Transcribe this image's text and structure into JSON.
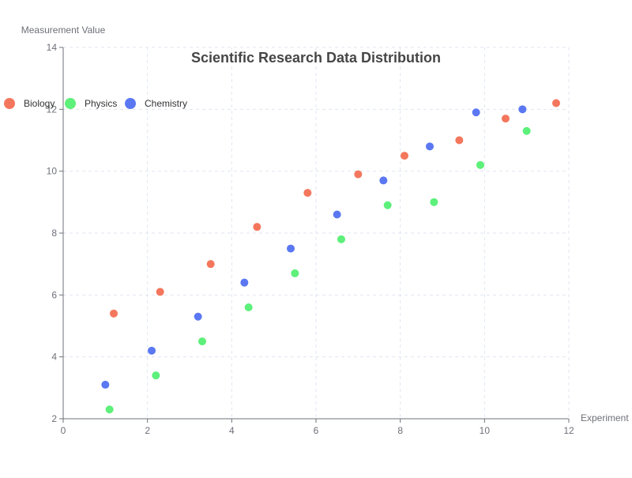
{
  "chart_data": {
    "type": "scatter",
    "title": "Scientific Research Data Distribution",
    "xlabel": "Experiment",
    "ylabel": "Measurement Value",
    "xlim": [
      0,
      12
    ],
    "ylim": [
      2,
      14
    ],
    "x_ticks": [
      0,
      2,
      4,
      6,
      8,
      10,
      12
    ],
    "y_ticks": [
      2,
      4,
      6,
      8,
      10,
      12,
      14
    ],
    "grid": true,
    "legend_position": "top-left",
    "series": [
      {
        "name": "Biology",
        "color": "#f4775d",
        "points": [
          [
            1.2,
            5.4
          ],
          [
            2.3,
            6.1
          ],
          [
            3.5,
            7.0
          ],
          [
            4.6,
            8.2
          ],
          [
            5.8,
            9.3
          ],
          [
            7.0,
            9.9
          ],
          [
            8.1,
            10.5
          ],
          [
            9.4,
            11.0
          ],
          [
            10.5,
            11.7
          ],
          [
            11.7,
            12.2
          ]
        ]
      },
      {
        "name": "Physics",
        "color": "#5df07a",
        "points": [
          [
            1.1,
            2.3
          ],
          [
            2.2,
            3.4
          ],
          [
            3.3,
            4.5
          ],
          [
            4.4,
            5.6
          ],
          [
            5.5,
            6.7
          ],
          [
            6.6,
            7.8
          ],
          [
            7.7,
            8.9
          ],
          [
            8.8,
            9.0
          ],
          [
            9.9,
            10.2
          ],
          [
            11.0,
            11.3
          ]
        ]
      },
      {
        "name": "Chemistry",
        "color": "#5b78f2",
        "points": [
          [
            1.0,
            3.1
          ],
          [
            2.1,
            4.2
          ],
          [
            3.2,
            5.3
          ],
          [
            4.3,
            6.4
          ],
          [
            5.4,
            7.5
          ],
          [
            6.5,
            8.6
          ],
          [
            7.6,
            9.7
          ],
          [
            8.7,
            10.8
          ],
          [
            9.8,
            11.9
          ],
          [
            10.9,
            12.0
          ]
        ]
      }
    ]
  }
}
